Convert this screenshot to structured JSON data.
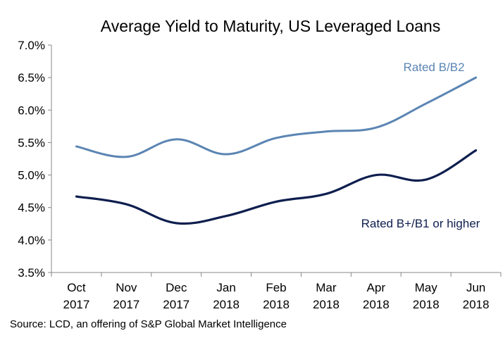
{
  "chart_data": {
    "type": "line",
    "title": "Average Yield to Maturity, US Leveraged Loans",
    "categories": [
      [
        "Oct",
        "2017"
      ],
      [
        "Nov",
        "2017"
      ],
      [
        "Dec",
        "2017"
      ],
      [
        "Jan",
        "2018"
      ],
      [
        "Feb",
        "2018"
      ],
      [
        "Mar",
        "2018"
      ],
      [
        "Apr",
        "2018"
      ],
      [
        "May",
        "2018"
      ],
      [
        "Jun",
        "2018"
      ]
    ],
    "yticks": [
      "3.5%",
      "4.0%",
      "4.5%",
      "5.0%",
      "5.5%",
      "6.0%",
      "6.5%",
      "7.0%"
    ],
    "ylim": [
      3.5,
      7.0
    ],
    "series": [
      {
        "name": "Rated B/B2",
        "color": "#5B85B3",
        "values": [
          5.44,
          5.28,
          5.55,
          5.32,
          5.57,
          5.67,
          5.73,
          6.1,
          6.5
        ]
      },
      {
        "name": "Rated B+/B1 or higher",
        "color": "#0E1E4E",
        "values": [
          4.67,
          4.55,
          4.26,
          4.37,
          4.59,
          4.71,
          5.0,
          4.93,
          5.38
        ]
      }
    ],
    "grid": false,
    "legend": "inline labels"
  },
  "source": "Source: LCD, an offering of S&P Global Market Intelligence"
}
